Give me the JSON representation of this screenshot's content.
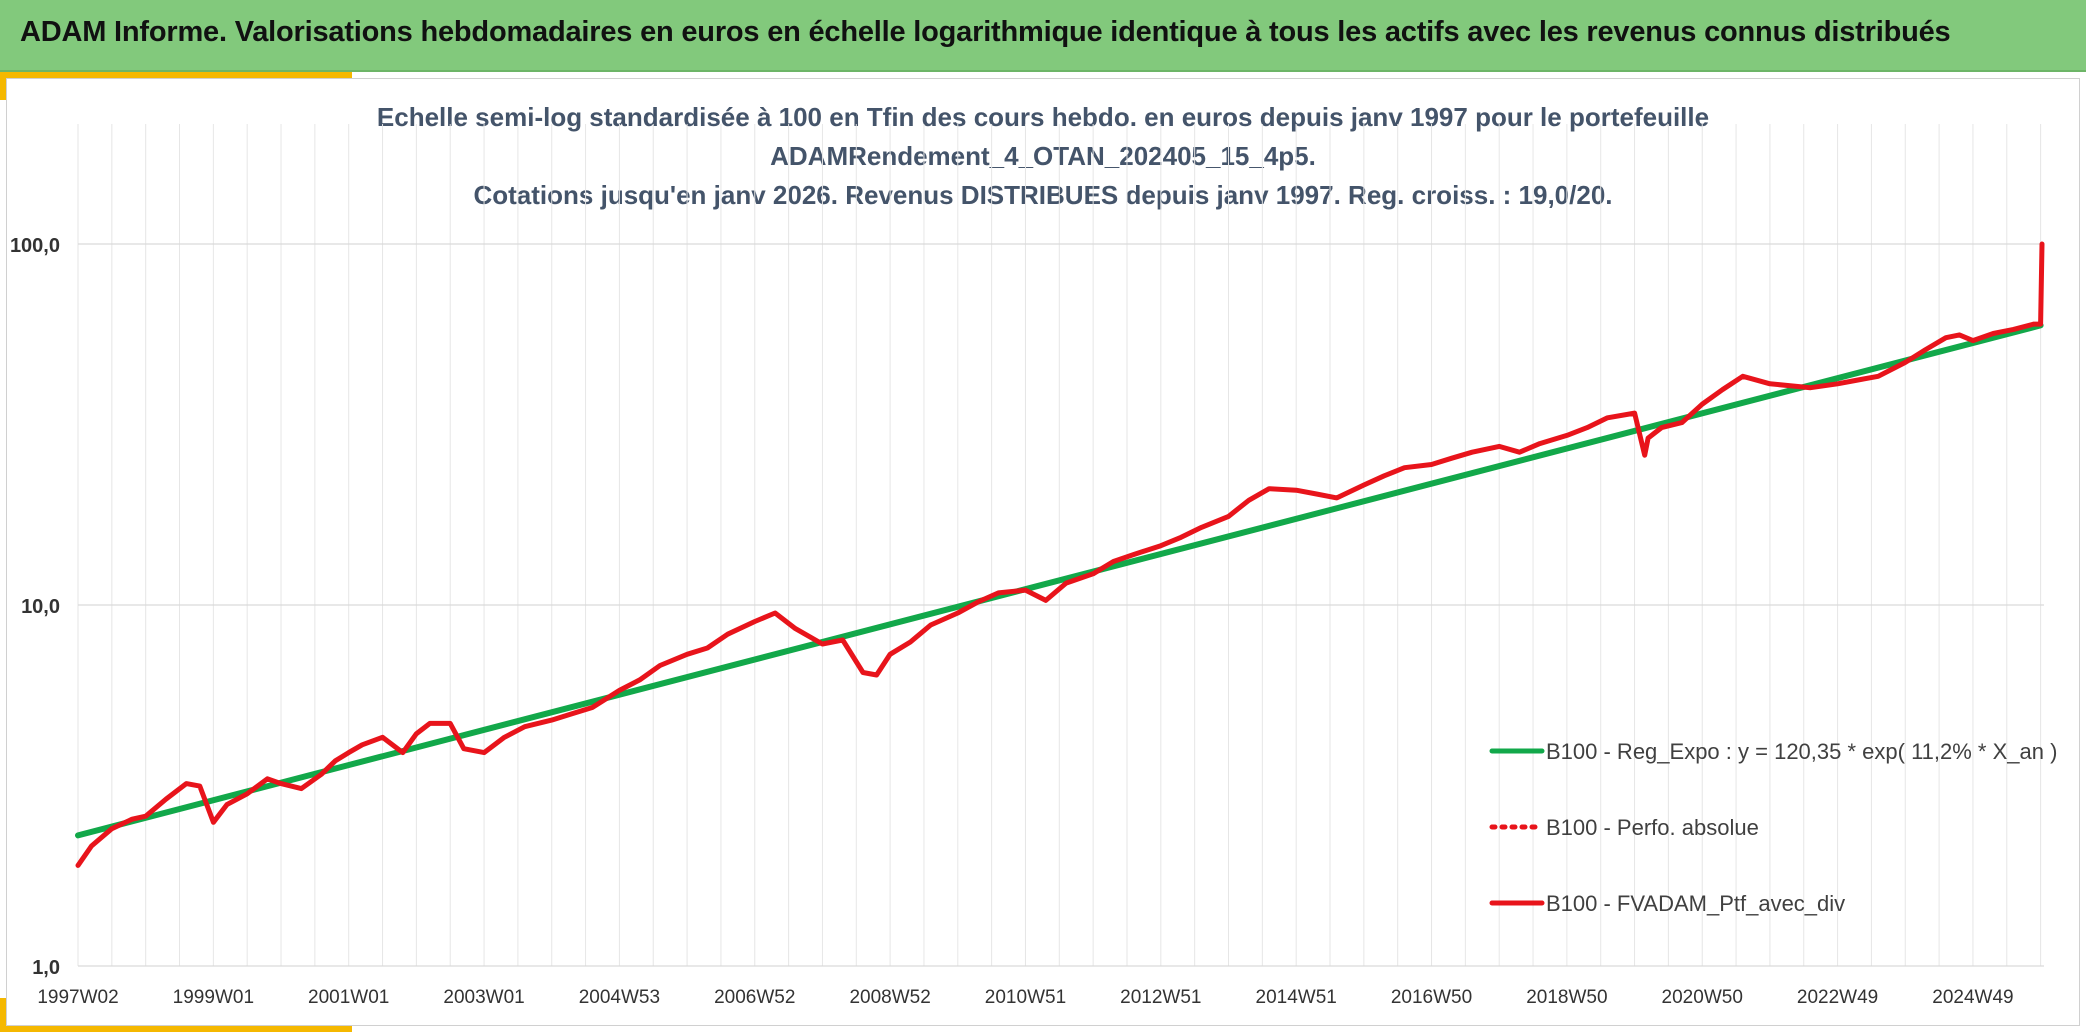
{
  "header": {
    "title": "ADAM Informe. Valorisations hebdomadaires en euros en échelle logarithmique identique à tous les actifs avec les revenus connus distribués"
  },
  "colors": {
    "header_bg": "#82c97c",
    "accent": "#f5b800",
    "regression": "#12a84a",
    "portfolio": "#e8141b",
    "subtitle_text": "#44546a"
  },
  "chart_data": {
    "type": "line",
    "subtitle_lines": [
      "Echelle semi-log standardisée à 100 en Tfin des cours hebdo. en euros depuis janv 1997 pour le portefeuille",
      "ADAMRendement_4_OTAN_202405_15_4p5.",
      "Cotations jusqu'en janv 2026. Revenus DISTRIBUES depuis janv 1997. Reg. croiss. : 19,0/20."
    ],
    "y_scale": "log",
    "ylim": [
      1,
      100
    ],
    "y_ticks": [
      "1,0",
      "10,0",
      "100,0"
    ],
    "y_tick_values": [
      1,
      10,
      100
    ],
    "xlim": [
      1997.0,
      2026.05
    ],
    "x_ticks": [
      "1997W02",
      "1999W01",
      "2001W01",
      "2003W01",
      "2004W53",
      "2006W52",
      "2008W52",
      "2010W51",
      "2012W51",
      "2014W51",
      "2016W50",
      "2018W50",
      "2020W50",
      "2022W49",
      "2024W49"
    ],
    "x_tick_values": [
      1997.0,
      1999.0,
      2001.0,
      2003.0,
      2005.0,
      2007.0,
      2009.0,
      2011.0,
      2013.0,
      2015.0,
      2017.0,
      2019.0,
      2021.0,
      2023.0,
      2025.0
    ],
    "grid": true,
    "legend_position": "bottom-right",
    "series": [
      {
        "name": "B100 - Reg_Expo : y = 120,35 * exp( 11,2% *  X_an )",
        "style": "solid",
        "color": "#12a84a",
        "x": [
          1997.0,
          2026.0
        ],
        "y": [
          2.3,
          59.5
        ]
      },
      {
        "name": "B100 - Perfo. absolue",
        "style": "dotted",
        "color": "#e8141b",
        "x": [],
        "y": []
      },
      {
        "name": "B100 - FVADAM_Ptf_avec_div",
        "style": "solid",
        "color": "#e8141b",
        "x": [
          1997.0,
          1997.2,
          1997.5,
          1997.8,
          1998.0,
          1998.3,
          1998.6,
          1998.8,
          1999.0,
          1999.2,
          1999.5,
          1999.8,
          2000.0,
          2000.3,
          2000.6,
          2000.8,
          2001.0,
          2001.2,
          2001.5,
          2001.8,
          2002.0,
          2002.2,
          2002.5,
          2002.7,
          2003.0,
          2003.3,
          2003.6,
          2004.0,
          2004.3,
          2004.6,
          2005.0,
          2005.3,
          2005.6,
          2006.0,
          2006.3,
          2006.6,
          2007.0,
          2007.3,
          2007.6,
          2008.0,
          2008.3,
          2008.6,
          2008.8,
          2009.0,
          2009.3,
          2009.6,
          2010.0,
          2010.3,
          2010.6,
          2011.0,
          2011.3,
          2011.6,
          2012.0,
          2012.3,
          2012.6,
          2013.0,
          2013.3,
          2013.6,
          2014.0,
          2014.3,
          2014.6,
          2015.0,
          2015.3,
          2015.6,
          2016.0,
          2016.3,
          2016.6,
          2017.0,
          2017.3,
          2017.6,
          2018.0,
          2018.3,
          2018.6,
          2019.0,
          2019.3,
          2019.6,
          2020.0,
          2020.15,
          2020.2,
          2020.4,
          2020.7,
          2021.0,
          2021.3,
          2021.6,
          2022.0,
          2022.3,
          2022.6,
          2023.0,
          2023.3,
          2023.6,
          2024.0,
          2024.3,
          2024.6,
          2024.8,
          2025.0,
          2025.3,
          2025.6,
          2025.9,
          2026.0,
          2026.02
        ],
        "y": [
          1.9,
          2.15,
          2.4,
          2.55,
          2.6,
          2.9,
          3.2,
          3.15,
          2.5,
          2.8,
          3.0,
          3.3,
          3.2,
          3.1,
          3.4,
          3.7,
          3.9,
          4.1,
          4.3,
          3.9,
          4.4,
          4.7,
          4.7,
          4.0,
          3.9,
          4.3,
          4.6,
          4.8,
          5.0,
          5.2,
          5.8,
          6.2,
          6.8,
          7.3,
          7.6,
          8.3,
          9.0,
          9.5,
          8.6,
          7.8,
          8.0,
          6.5,
          6.4,
          7.3,
          7.9,
          8.8,
          9.5,
          10.2,
          10.8,
          11.0,
          10.3,
          11.5,
          12.2,
          13.2,
          13.8,
          14.6,
          15.4,
          16.4,
          17.6,
          19.5,
          21.0,
          20.8,
          20.3,
          19.8,
          21.5,
          22.8,
          24.0,
          24.5,
          25.5,
          26.5,
          27.5,
          26.5,
          28.0,
          29.5,
          31.0,
          33.0,
          34.0,
          26.0,
          29.0,
          31.0,
          32.0,
          36.0,
          39.5,
          43.0,
          41.0,
          40.5,
          40.0,
          41.0,
          42.0,
          43.0,
          47.0,
          51.0,
          55.0,
          56.0,
          54.0,
          56.5,
          58.0,
          60.0,
          60.0,
          100.0
        ]
      }
    ]
  }
}
